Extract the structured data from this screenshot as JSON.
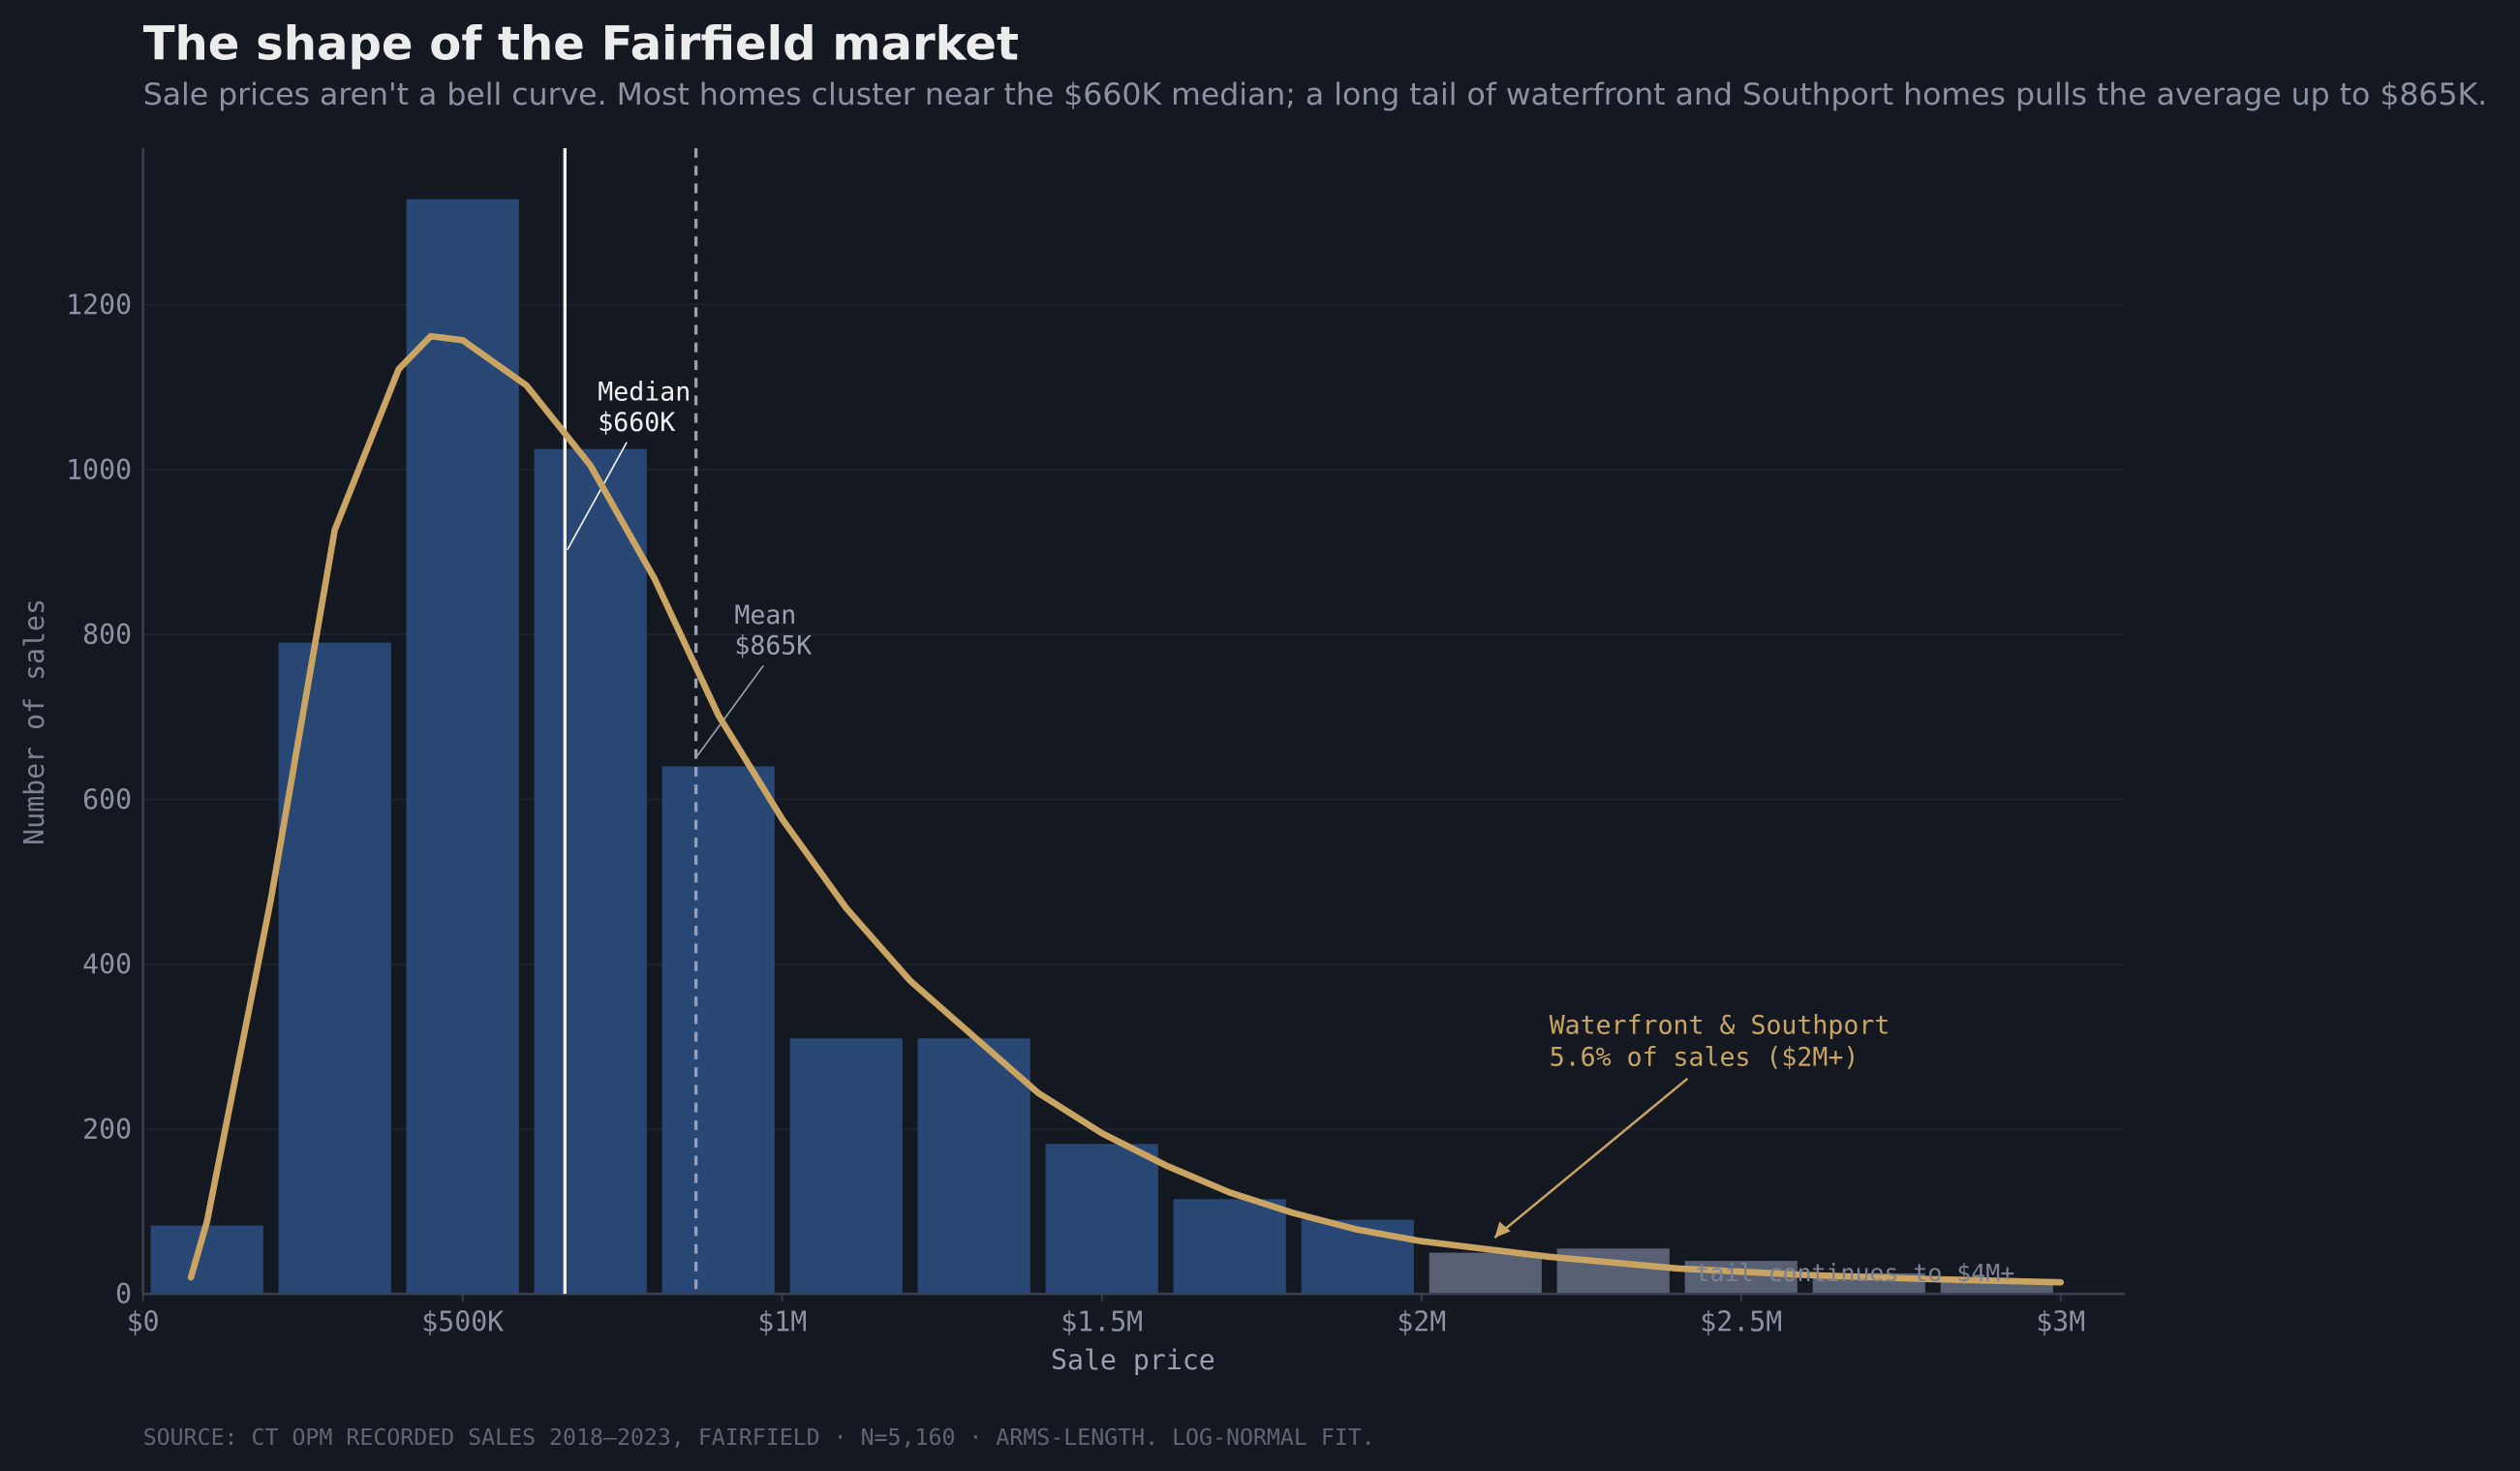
{
  "chart_data": {
    "type": "histogram",
    "title": "The shape of the Fairfield market",
    "subtitle": "Sale prices aren't a bell curve. Most homes cluster near the $660K median; a long tail of waterfront and Southport homes pulls the average up to $865K.",
    "x_label": "Sale price",
    "y_label": "Number of sales",
    "source": "SOURCE: CT OPM RECORDED SALES 2018–2023, FAIRFIELD · N=5,160 · ARMS-LENGTH. LOG-NORMAL FIT.",
    "bins": [
      0,
      200000,
      400000,
      600000,
      800000,
      1000000,
      1200000,
      1400000,
      1600000,
      1800000,
      2000000,
      2200000,
      2400000,
      2600000,
      2800000,
      3000000
    ],
    "values": [
      83,
      790,
      1328,
      1025,
      640,
      310,
      310,
      182,
      115,
      90,
      50,
      55,
      40,
      25,
      15
    ],
    "colors": [
      "#284774",
      "#284774",
      "#284774",
      "#284774",
      "#284774",
      "#284774",
      "#284774",
      "#284774",
      "#284774",
      "#284774",
      "#576173",
      "#576173",
      "#576173",
      "#576173",
      "#576173"
    ],
    "fit": {
      "color": "#c9a462",
      "x": [
        75000,
        100000,
        200000,
        300000,
        400000,
        450000,
        500000,
        600000,
        700000,
        800000,
        900000,
        1000000,
        1100000,
        1200000,
        1300000,
        1400000,
        1500000,
        1600000,
        1700000,
        1800000,
        1900000,
        2000000,
        2200000,
        2400000,
        2600000,
        2800000,
        3000000
      ],
      "values": [
        20,
        88,
        478,
        927,
        1122,
        1162,
        1157,
        1102,
        1005,
        868,
        702,
        576,
        468,
        380,
        312,
        244,
        195,
        156,
        123,
        98,
        78,
        64,
        45,
        31,
        23,
        18,
        14
      ]
    },
    "median": {
      "value": 660000,
      "lines": [
        "Median",
        "$660K"
      ],
      "color": "#f2f2f2"
    },
    "mean": {
      "value": 865000,
      "lines": [
        "Mean",
        "$865K"
      ],
      "color": "#9aa0b0"
    },
    "annotations": [
      {
        "lines": [
          "Waterfront & Southport",
          "5.6% of sales ($2M+)"
        ],
        "color": "#c9a462"
      },
      {
        "lines": [
          "tail continues to $4M+"
        ],
        "color": "#7c8292"
      }
    ],
    "xlim": [
      0,
      3100000
    ],
    "ylim": [
      0,
      1390
    ],
    "xticks": [
      {
        "value": 0,
        "label": "$0"
      },
      {
        "value": 500000,
        "label": "$500K"
      },
      {
        "value": 1000000,
        "label": "$1M"
      },
      {
        "value": 1500000,
        "label": "$1.5M"
      },
      {
        "value": 2000000,
        "label": "$2M"
      },
      {
        "value": 2500000,
        "label": "$2.5M"
      },
      {
        "value": 3000000,
        "label": "$3M"
      }
    ],
    "yticks": [
      0,
      200,
      400,
      600,
      800,
      1000,
      1200
    ],
    "grid": true
  }
}
